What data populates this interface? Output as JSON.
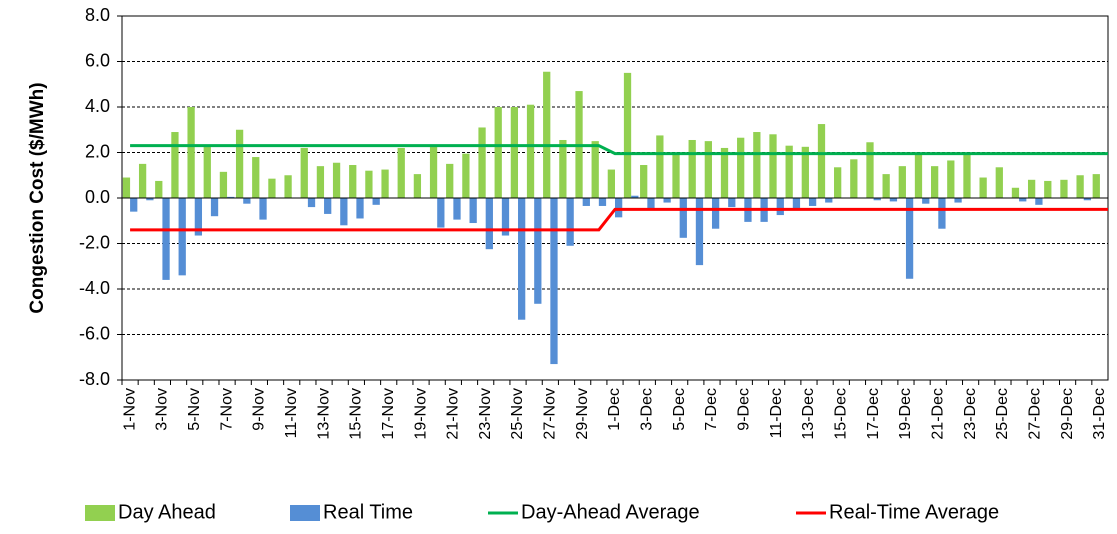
{
  "chart_data": {
    "type": "bar",
    "y_label": "Congestion Cost ($/MWh)",
    "categories": [
      "1-Nov",
      null,
      "3-Nov",
      null,
      "5-Nov",
      null,
      "7-Nov",
      null,
      "9-Nov",
      null,
      "11-Nov",
      null,
      "13-Nov",
      null,
      "15-Nov",
      null,
      "17-Nov",
      null,
      "19-Nov",
      null,
      "21-Nov",
      null,
      "23-Nov",
      null,
      "25-Nov",
      null,
      "27-Nov",
      null,
      "29-Nov",
      null,
      "1-Dec",
      null,
      "3-Dec",
      null,
      "5-Dec",
      null,
      "7-Dec",
      null,
      "9-Dec",
      null,
      "11-Dec",
      null,
      "13-Dec",
      null,
      "15-Dec",
      null,
      "17-Dec",
      null,
      "19-Dec",
      null,
      "21-Dec",
      null,
      "23-Dec",
      null,
      "25-Dec",
      null,
      "27-Dec",
      null,
      "29-Dec",
      null,
      "31-Dec"
    ],
    "series": [
      {
        "name": "Day Ahead",
        "kind": "bar",
        "color": "#92d050",
        "values": [
          0.9,
          1.5,
          0.75,
          2.9,
          4.0,
          2.3,
          1.15,
          3.0,
          1.8,
          0.85,
          1.0,
          2.2,
          1.4,
          1.55,
          1.45,
          1.2,
          1.25,
          2.2,
          1.05,
          2.3,
          1.5,
          1.95,
          3.1,
          4.0,
          4.0,
          4.1,
          5.55,
          2.55,
          4.7,
          2.5,
          1.25,
          5.5,
          1.45,
          2.75,
          1.9,
          2.55,
          2.5,
          2.2,
          2.65,
          2.9,
          2.8,
          2.3,
          2.25,
          3.25,
          1.35,
          1.7,
          2.45,
          1.05,
          1.4,
          1.9,
          1.4,
          1.65,
          1.9,
          0.9,
          1.35,
          0.45,
          0.8,
          0.75,
          0.8,
          1.0,
          1.05
        ]
      },
      {
        "name": "Real Time",
        "kind": "bar",
        "color": "#558ed5",
        "values": [
          -0.6,
          -0.1,
          -3.6,
          -3.4,
          -1.65,
          -0.8,
          0.05,
          -0.25,
          -0.95,
          0,
          0,
          -0.4,
          -0.7,
          -1.2,
          -0.9,
          -0.3,
          0,
          0,
          0,
          -1.3,
          -0.95,
          -1.1,
          -2.25,
          -1.65,
          -5.35,
          -4.65,
          -7.3,
          -2.1,
          -0.35,
          -0.35,
          -0.85,
          0.1,
          -0.5,
          -0.2,
          -1.75,
          -2.95,
          -1.35,
          -0.4,
          -1.05,
          -1.05,
          -0.75,
          -0.5,
          -0.35,
          -0.2,
          0,
          0,
          -0.1,
          -0.15,
          -3.55,
          -0.25,
          -1.35,
          -0.2,
          0,
          0,
          0,
          -0.15,
          -0.3,
          0,
          0,
          -0.1,
          0
        ]
      },
      {
        "name": "Day-Ahead Average",
        "kind": "line",
        "color": "#00b050",
        "values": [
          2.3,
          2.3,
          2.3,
          2.3,
          2.3,
          2.3,
          2.3,
          2.3,
          2.3,
          2.3,
          2.3,
          2.3,
          2.3,
          2.3,
          2.3,
          2.3,
          2.3,
          2.3,
          2.3,
          2.3,
          2.3,
          2.3,
          2.3,
          2.3,
          2.3,
          2.3,
          2.3,
          2.3,
          2.3,
          2.3,
          1.95,
          1.95,
          1.95,
          1.95,
          1.95,
          1.95,
          1.95,
          1.95,
          1.95,
          1.95,
          1.95,
          1.95,
          1.95,
          1.95,
          1.95,
          1.95,
          1.95,
          1.95,
          1.95,
          1.95,
          1.95,
          1.95,
          1.95,
          1.95,
          1.95,
          1.95,
          1.95,
          1.95,
          1.95,
          1.95,
          1.95
        ]
      },
      {
        "name": "Real-Time Average",
        "kind": "line",
        "color": "#ff0000",
        "values": [
          -1.4,
          -1.4,
          -1.4,
          -1.4,
          -1.4,
          -1.4,
          -1.4,
          -1.4,
          -1.4,
          -1.4,
          -1.4,
          -1.4,
          -1.4,
          -1.4,
          -1.4,
          -1.4,
          -1.4,
          -1.4,
          -1.4,
          -1.4,
          -1.4,
          -1.4,
          -1.4,
          -1.4,
          -1.4,
          -1.4,
          -1.4,
          -1.4,
          -1.4,
          -1.4,
          -0.5,
          -0.5,
          -0.5,
          -0.5,
          -0.5,
          -0.5,
          -0.5,
          -0.5,
          -0.5,
          -0.5,
          -0.5,
          -0.5,
          -0.5,
          -0.5,
          -0.5,
          -0.5,
          -0.5,
          -0.5,
          -0.5,
          -0.5,
          -0.5,
          -0.5,
          -0.5,
          -0.5,
          -0.5,
          -0.5,
          -0.5,
          -0.5,
          -0.5,
          -0.5,
          -0.5
        ]
      }
    ],
    "ylim": [
      -8,
      8
    ],
    "yticks": [
      {
        "value": -8,
        "label": "-8.0"
      },
      {
        "value": -6,
        "label": "-6.0"
      },
      {
        "value": -4,
        "label": "-4.0"
      },
      {
        "value": -2,
        "label": "-2.0"
      },
      {
        "value": 0,
        "label": "0.0"
      },
      {
        "value": 2,
        "label": "2.0"
      },
      {
        "value": 4,
        "label": "4.0"
      },
      {
        "value": 6,
        "label": "6.0"
      },
      {
        "value": 8,
        "label": "8.0"
      }
    ],
    "grid": true,
    "legend": "bottom"
  }
}
